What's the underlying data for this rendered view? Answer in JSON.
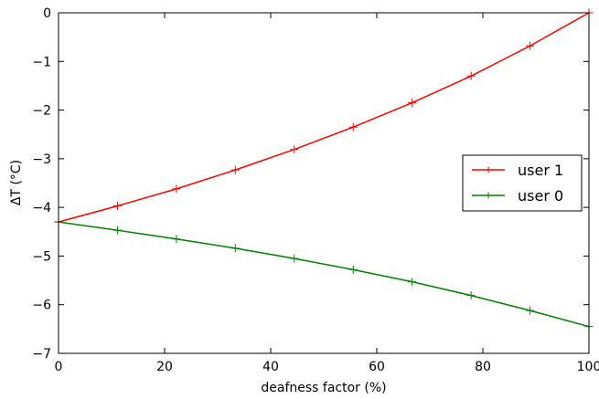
{
  "chart_data": {
    "type": "line",
    "title": "",
    "xlabel": "deafness factor (%)",
    "ylabel": "ΔT (°C)",
    "xlim": [
      0,
      100
    ],
    "ylim": [
      -7,
      0
    ],
    "xticks": [
      0,
      20,
      40,
      60,
      80,
      100
    ],
    "xtick_labels": [
      "0",
      "20",
      "40",
      "60",
      "80",
      "100"
    ],
    "yticks": [
      0,
      -1,
      -2,
      -3,
      -4,
      -5,
      -6,
      -7
    ],
    "ytick_labels": [
      "0",
      "−1",
      "−2",
      "−3",
      "−4",
      "−5",
      "−6",
      "−7"
    ],
    "grid": false,
    "legend_position": "center-right",
    "series": [
      {
        "name": "user 1",
        "color": "#ff0000",
        "marker": "+",
        "x": [
          0,
          11.11,
          22.22,
          33.33,
          44.44,
          55.56,
          66.67,
          77.78,
          88.89,
          100
        ],
        "y": [
          -4.3,
          -3.97,
          -3.62,
          -3.23,
          -2.81,
          -2.35,
          -1.85,
          -1.3,
          -0.68,
          0.0
        ]
      },
      {
        "name": "user 0",
        "color": "#008000",
        "marker": "+",
        "x": [
          0,
          11.11,
          22.22,
          33.33,
          44.44,
          55.56,
          66.67,
          77.78,
          88.89,
          100
        ],
        "y": [
          -4.3,
          -4.47,
          -4.65,
          -4.84,
          -5.05,
          -5.28,
          -5.53,
          -5.81,
          -6.12,
          -6.45
        ]
      }
    ]
  }
}
